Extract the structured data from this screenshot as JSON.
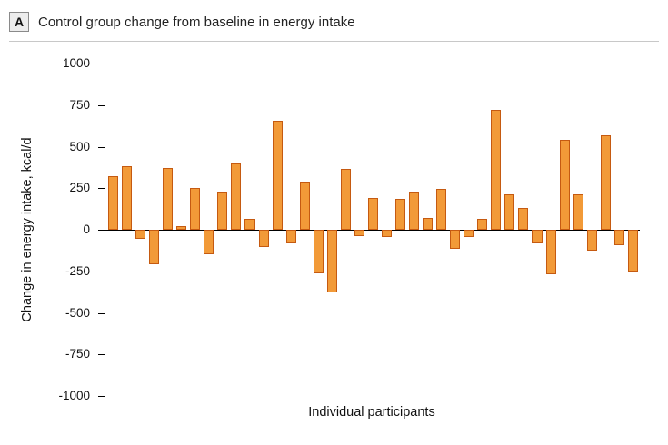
{
  "figure": {
    "panel_label": "A",
    "title": "Control group change from baseline in energy intake"
  },
  "chart_data": {
    "type": "bar",
    "title": "Control group change from baseline in energy intake",
    "xlabel": "Individual participants",
    "ylabel": "Change in energy intake, kcal/d",
    "ylim": [
      -1000,
      1000
    ],
    "yticks": [
      1000,
      750,
      500,
      250,
      0,
      -250,
      -500,
      -750,
      -1000
    ],
    "grid": "off",
    "legend": "none",
    "bar_color": "#F29A38",
    "bar_border_color": "#C55A11",
    "values": [
      325,
      380,
      -55,
      -205,
      370,
      20,
      250,
      -145,
      230,
      400,
      65,
      -105,
      655,
      -80,
      290,
      -265,
      -375,
      365,
      -40,
      190,
      -45,
      185,
      230,
      70,
      245,
      -115,
      -45,
      65,
      720,
      215,
      130,
      -80,
      -270,
      540,
      215,
      -125,
      570,
      -95,
      -250
    ]
  }
}
